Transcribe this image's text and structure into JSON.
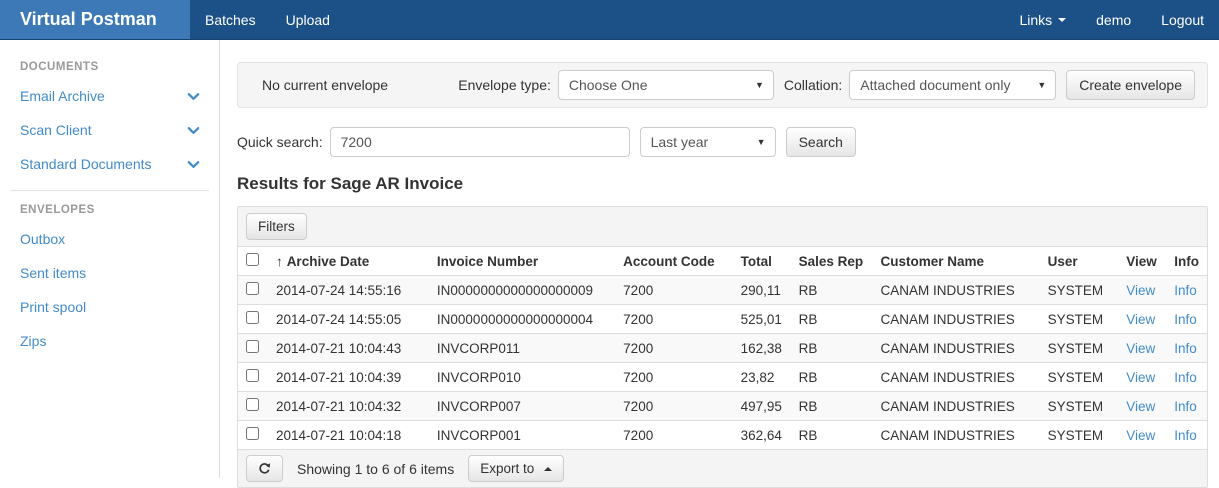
{
  "colors": {
    "navbar_bg": "#1c5187",
    "brand_bg": "#3d79b6",
    "link_accent": "#428bca",
    "panel_bg": "#f5f5f5",
    "stripe_bg": "#f9f9f9"
  },
  "navbar": {
    "brand": "Virtual Postman",
    "items": [
      {
        "label": "Batches"
      },
      {
        "label": "Upload"
      }
    ],
    "links_label": "Links",
    "user_label": "demo",
    "logout_label": "Logout"
  },
  "sidebar": {
    "sections": [
      {
        "header": "DOCUMENTS",
        "items": [
          {
            "label": "Email Archive"
          },
          {
            "label": "Scan Client"
          },
          {
            "label": "Standard Documents"
          }
        ]
      },
      {
        "header": "ENVELOPES",
        "items": [
          {
            "label": "Outbox"
          },
          {
            "label": "Sent items"
          },
          {
            "label": "Print spool"
          },
          {
            "label": "Zips"
          }
        ]
      }
    ]
  },
  "envelope_panel": {
    "status_text": "No current envelope",
    "envelope_type_label": "Envelope type:",
    "envelope_type_value": "Choose One",
    "collation_label": "Collation:",
    "collation_value": "Attached document only",
    "create_button": "Create envelope"
  },
  "quick_search": {
    "label": "Quick search:",
    "value": "7200",
    "period_value": "Last year",
    "search_button": "Search"
  },
  "results": {
    "title": "Results for Sage AR Invoice",
    "filters_button": "Filters",
    "table": {
      "sort_icon": "↑",
      "columns": {
        "archive_date": "Archive Date",
        "invoice_number": "Invoice Number",
        "account_code": "Account Code",
        "total": "Total",
        "sales_rep": "Sales Rep",
        "customer_name": "Customer Name",
        "user": "User",
        "view": "View",
        "info": "Info"
      },
      "view_label": "View",
      "info_label": "Info",
      "rows": [
        {
          "archive_date": "2014-07-24 14:55:16",
          "invoice_number": "IN0000000000000000009",
          "account_code": "7200",
          "total": "290,11",
          "sales_rep": "RB",
          "customer_name": "CANAM INDUSTRIES",
          "user": "SYSTEM"
        },
        {
          "archive_date": "2014-07-24 14:55:05",
          "invoice_number": "IN0000000000000000004",
          "account_code": "7200",
          "total": "525,01",
          "sales_rep": "RB",
          "customer_name": "CANAM INDUSTRIES",
          "user": "SYSTEM"
        },
        {
          "archive_date": "2014-07-21 10:04:43",
          "invoice_number": "INVCORP011",
          "account_code": "7200",
          "total": "162,38",
          "sales_rep": "RB",
          "customer_name": "CANAM INDUSTRIES",
          "user": "SYSTEM"
        },
        {
          "archive_date": "2014-07-21 10:04:39",
          "invoice_number": "INVCORP010",
          "account_code": "7200",
          "total": "23,82",
          "sales_rep": "RB",
          "customer_name": "CANAM INDUSTRIES",
          "user": "SYSTEM"
        },
        {
          "archive_date": "2014-07-21 10:04:32",
          "invoice_number": "INVCORP007",
          "account_code": "7200",
          "total": "497,95",
          "sales_rep": "RB",
          "customer_name": "CANAM INDUSTRIES",
          "user": "SYSTEM"
        },
        {
          "archive_date": "2014-07-21 10:04:18",
          "invoice_number": "INVCORP001",
          "account_code": "7200",
          "total": "362,64",
          "sales_rep": "RB",
          "customer_name": "CANAM INDUSTRIES",
          "user": "SYSTEM"
        }
      ]
    },
    "footer": {
      "showing_text": "Showing 1 to 6 of 6 items",
      "export_button": "Export to"
    }
  }
}
